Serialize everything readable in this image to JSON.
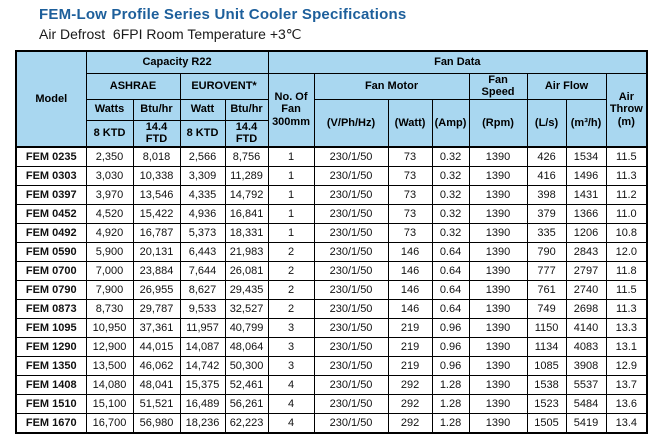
{
  "page": {
    "title": "FEM-Low Profile Series Unit Cooler Specifications",
    "subtitle": "Air Defrost  6FPI Room Temperature +3℃"
  },
  "colors": {
    "title_blue": "#1d5f9b",
    "header_bg": "#a9d7f0",
    "border": "#000000"
  },
  "table": {
    "header": {
      "model": "Model",
      "capacity_group": "Capacity R22",
      "fan_data_group": "Fan Data",
      "ashrae": "ASHRAE",
      "eurovent": "EUROVENT*",
      "no_of_fan": "No. Of Fan 300mm",
      "fan_motor": "Fan Motor",
      "fan_speed": "Fan Speed",
      "air_flow": "Air Flow",
      "air_throw": "Air Throw (m)",
      "watts_ashrae": "Watts",
      "btuhr_ashrae": "Btu/hr",
      "watt_eurovent": "Watt",
      "btuhr_eurovent": "Btu/hr",
      "ktd_ashrae": "8 KTD",
      "ftd_ashrae": "14.4 FTD",
      "ktd_eurovent": "8 KTD",
      "ftd_eurovent": "14.4 FTD",
      "v_ph_hz": "(V/Ph/Hz)",
      "motor_watt": "(Watt)",
      "amp": "(Amp)",
      "rpm": "(Rpm)",
      "l_s": "(L/s)",
      "m3_h": "(m³/h)"
    },
    "rows": [
      [
        "FEM 0235",
        "2,350",
        "8,018",
        "2,566",
        "8,756",
        "1",
        "230/1/50",
        "73",
        "0.32",
        "1390",
        "426",
        "1534",
        "11.5"
      ],
      [
        "FEM 0303",
        "3,030",
        "10,338",
        "3,309",
        "11,289",
        "1",
        "230/1/50",
        "73",
        "0.32",
        "1390",
        "416",
        "1496",
        "11.3"
      ],
      [
        "FEM 0397",
        "3,970",
        "13,546",
        "4,335",
        "14,792",
        "1",
        "230/1/50",
        "73",
        "0.32",
        "1390",
        "398",
        "1431",
        "11.2"
      ],
      [
        "FEM 0452",
        "4,520",
        "15,422",
        "4,936",
        "16,841",
        "1",
        "230/1/50",
        "73",
        "0.32",
        "1390",
        "379",
        "1366",
        "11.0"
      ],
      [
        "FEM 0492",
        "4,920",
        "16,787",
        "5,373",
        "18,331",
        "1",
        "230/1/50",
        "73",
        "0.32",
        "1390",
        "335",
        "1206",
        "10.8"
      ],
      [
        "FEM 0590",
        "5,900",
        "20,131",
        "6,443",
        "21,983",
        "2",
        "230/1/50",
        "146",
        "0.64",
        "1390",
        "790",
        "2843",
        "12.0"
      ],
      [
        "FEM 0700",
        "7,000",
        "23,884",
        "7,644",
        "26,081",
        "2",
        "230/1/50",
        "146",
        "0.64",
        "1390",
        "777",
        "2797",
        "11.8"
      ],
      [
        "FEM 0790",
        "7,900",
        "26,955",
        "8,627",
        "29,435",
        "2",
        "230/1/50",
        "146",
        "0.64",
        "1390",
        "761",
        "2740",
        "11.5"
      ],
      [
        "FEM 0873",
        "8,730",
        "29,787",
        "9,533",
        "32,527",
        "2",
        "230/1/50",
        "146",
        "0.64",
        "1390",
        "749",
        "2698",
        "11.3"
      ],
      [
        "FEM 1095",
        "10,950",
        "37,361",
        "11,957",
        "40,799",
        "3",
        "230/1/50",
        "219",
        "0.96",
        "1390",
        "1150",
        "4140",
        "13.3"
      ],
      [
        "FEM 1290",
        "12,900",
        "44,015",
        "14,087",
        "48,064",
        "3",
        "230/1/50",
        "219",
        "0.96",
        "1390",
        "1134",
        "4083",
        "13.1"
      ],
      [
        "FEM 1350",
        "13,500",
        "46,062",
        "14,742",
        "50,300",
        "3",
        "230/1/50",
        "219",
        "0.96",
        "1390",
        "1085",
        "3908",
        "12.9"
      ],
      [
        "FEM 1408",
        "14,080",
        "48,041",
        "15,375",
        "52,461",
        "4",
        "230/1/50",
        "292",
        "1.28",
        "1390",
        "1538",
        "5537",
        "13.7"
      ],
      [
        "FEM 1510",
        "15,100",
        "51,521",
        "16,489",
        "56,261",
        "4",
        "230/1/50",
        "292",
        "1.28",
        "1390",
        "1523",
        "5484",
        "13.6"
      ],
      [
        "FEM 1670",
        "16,700",
        "56,980",
        "18,236",
        "62,223",
        "4",
        "230/1/50",
        "292",
        "1.28",
        "1390",
        "1505",
        "5419",
        "13.4"
      ]
    ]
  }
}
